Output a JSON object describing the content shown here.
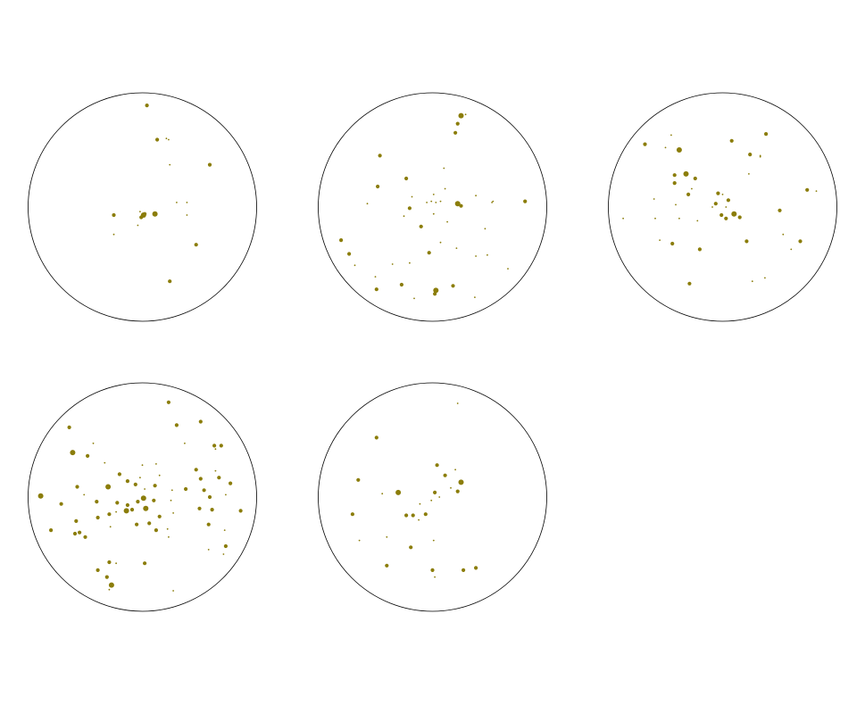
{
  "chart_data": [
    {
      "type": "scatter",
      "marker_color": "#8B7D0A",
      "points": [
        [
          0.04,
          0.89,
          2
        ],
        [
          0.13,
          0.59,
          2
        ],
        [
          0.23,
          0.59,
          1
        ],
        [
          0.24,
          0.37,
          1
        ],
        [
          0.39,
          0.04,
          1
        ],
        [
          0.3,
          0.04,
          1
        ],
        [
          0.01,
          -0.07,
          3
        ],
        [
          0.02,
          -0.06,
          2
        ],
        [
          -0.01,
          -0.09,
          2
        ],
        [
          -0.02,
          -0.04,
          1
        ],
        [
          0.11,
          -0.06,
          3
        ],
        [
          0.39,
          -0.07,
          1
        ],
        [
          -0.25,
          -0.24,
          1
        ],
        [
          -0.04,
          -0.16,
          1
        ],
        [
          0.47,
          -0.33,
          2
        ],
        [
          -0.25,
          -0.07,
          2
        ],
        [
          0.59,
          0.37,
          2
        ],
        [
          0.24,
          -0.65,
          2
        ],
        [
          0.21,
          0.6,
          1
        ]
      ]
    },
    {
      "type": "scatter",
      "marker_color": "#8B7D0A",
      "points": [
        [
          0.25,
          0.8,
          3
        ],
        [
          0.29,
          0.81,
          1
        ],
        [
          0.22,
          0.73,
          2
        ],
        [
          0.2,
          0.65,
          2
        ],
        [
          -0.46,
          0.45,
          2
        ],
        [
          0.1,
          0.34,
          1
        ],
        [
          -0.23,
          0.25,
          2
        ],
        [
          0.11,
          0.16,
          1
        ],
        [
          -0.48,
          0.18,
          2
        ],
        [
          0.38,
          0.1,
          1
        ],
        [
          -0.18,
          0.09,
          1
        ],
        [
          0.01,
          0.11,
          1
        ],
        [
          -0.57,
          0.03,
          1
        ],
        [
          -0.05,
          0.04,
          1
        ],
        [
          -0.01,
          0.05,
          1
        ],
        [
          0.03,
          0.04,
          1
        ],
        [
          0.07,
          0.05,
          1
        ],
        [
          0.22,
          0.03,
          3
        ],
        [
          0.25,
          0.01,
          2
        ],
        [
          0.52,
          0.04,
          1
        ],
        [
          0.81,
          0.05,
          2
        ],
        [
          -0.2,
          -0.01,
          2
        ],
        [
          0.01,
          -0.06,
          1
        ],
        [
          -0.25,
          -0.08,
          1
        ],
        [
          0.13,
          -0.13,
          1
        ],
        [
          -0.1,
          -0.17,
          2
        ],
        [
          0.46,
          -0.19,
          1
        ],
        [
          -0.8,
          -0.29,
          2
        ],
        [
          0.07,
          -0.31,
          1
        ],
        [
          0.21,
          -0.36,
          1
        ],
        [
          0.38,
          -0.43,
          1
        ],
        [
          0.48,
          -0.42,
          1
        ],
        [
          -0.73,
          -0.41,
          2
        ],
        [
          -0.03,
          -0.4,
          2
        ],
        [
          -0.68,
          -0.51,
          1
        ],
        [
          -0.35,
          -0.5,
          1
        ],
        [
          -0.2,
          -0.49,
          1
        ],
        [
          0.66,
          -0.54,
          1
        ],
        [
          -0.5,
          -0.61,
          1
        ],
        [
          -0.27,
          -0.68,
          2
        ],
        [
          0.18,
          -0.69,
          2
        ],
        [
          -0.49,
          -0.72,
          2
        ],
        [
          0.03,
          -0.73,
          3
        ],
        [
          0.02,
          -0.76,
          2
        ],
        [
          -0.16,
          -0.8,
          1
        ],
        [
          0.37,
          -0.79,
          1
        ],
        [
          0.53,
          0.05,
          1
        ]
      ]
    },
    {
      "type": "scatter",
      "marker_color": "#8B7D0A",
      "points": [
        [
          0.38,
          0.64,
          2
        ],
        [
          -0.68,
          0.55,
          2
        ],
        [
          -0.45,
          0.63,
          1
        ],
        [
          -0.38,
          0.5,
          3
        ],
        [
          0.08,
          0.58,
          2
        ],
        [
          0.24,
          0.46,
          2
        ],
        [
          0.33,
          0.44,
          1
        ],
        [
          -0.5,
          0.52,
          1
        ],
        [
          0.23,
          0.29,
          1
        ],
        [
          -0.32,
          0.29,
          3
        ],
        [
          -0.42,
          0.28,
          2
        ],
        [
          -0.24,
          0.25,
          2
        ],
        [
          -0.42,
          0.21,
          2
        ],
        [
          -0.27,
          0.16,
          1
        ],
        [
          -0.3,
          0.11,
          2
        ],
        [
          -0.04,
          0.12,
          2
        ],
        [
          0.0,
          0.11,
          1
        ],
        [
          -0.6,
          0.07,
          1
        ],
        [
          -0.06,
          0.03,
          2
        ],
        [
          0.05,
          0.06,
          2
        ],
        [
          -0.41,
          0.02,
          1
        ],
        [
          -0.09,
          0.0,
          1
        ],
        [
          0.03,
          0.0,
          1
        ],
        [
          0.1,
          -0.06,
          3
        ],
        [
          0.15,
          -0.09,
          2
        ],
        [
          -0.01,
          -0.07,
          2
        ],
        [
          0.03,
          -0.1,
          2
        ],
        [
          -0.59,
          -0.1,
          1
        ],
        [
          -0.55,
          -0.29,
          1
        ],
        [
          -0.38,
          -0.1,
          1
        ],
        [
          -0.22,
          -0.12,
          1
        ],
        [
          0.21,
          -0.3,
          2
        ],
        [
          -0.44,
          -0.32,
          2
        ],
        [
          -0.2,
          -0.37,
          2
        ],
        [
          0.5,
          -0.03,
          2
        ],
        [
          0.74,
          0.15,
          2
        ],
        [
          0.82,
          0.14,
          1
        ],
        [
          0.53,
          -0.24,
          1
        ],
        [
          0.68,
          -0.3,
          2
        ],
        [
          0.6,
          -0.37,
          1
        ],
        [
          -0.87,
          -0.1,
          1
        ],
        [
          -0.29,
          -0.67,
          2
        ],
        [
          0.26,
          -0.65,
          1
        ],
        [
          0.37,
          -0.62,
          1
        ],
        [
          0.33,
          0.45,
          1
        ],
        [
          0.24,
          0.47,
          1
        ]
      ]
    },
    {
      "type": "scatter",
      "marker_color": "#8B7D0A",
      "points": [
        [
          0.23,
          0.83,
          2
        ],
        [
          0.3,
          0.63,
          2
        ],
        [
          0.51,
          0.66,
          2
        ],
        [
          -0.64,
          0.61,
          2
        ],
        [
          -0.43,
          0.47,
          1
        ],
        [
          0.37,
          0.47,
          1
        ],
        [
          0.63,
          0.45,
          2
        ],
        [
          0.69,
          0.45,
          2
        ],
        [
          -0.61,
          0.39,
          3
        ],
        [
          -0.48,
          0.36,
          2
        ],
        [
          -0.33,
          0.3,
          1
        ],
        [
          0.0,
          0.28,
          1
        ],
        [
          0.12,
          0.29,
          1
        ],
        [
          0.47,
          0.24,
          2
        ],
        [
          0.64,
          0.23,
          1
        ],
        [
          -0.2,
          0.2,
          2
        ],
        [
          -0.13,
          0.14,
          2
        ],
        [
          -0.02,
          0.17,
          1
        ],
        [
          0.15,
          0.19,
          1
        ],
        [
          0.51,
          0.16,
          2
        ],
        [
          -0.06,
          0.11,
          2
        ],
        [
          0.11,
          0.1,
          2
        ],
        [
          0.67,
          0.17,
          2
        ],
        [
          0.77,
          0.12,
          2
        ],
        [
          -0.57,
          0.09,
          2
        ],
        [
          -0.3,
          0.09,
          3
        ],
        [
          0.38,
          0.07,
          2
        ],
        [
          0.54,
          0.06,
          2
        ],
        [
          -0.51,
          0.02,
          1
        ],
        [
          0.02,
          0.07,
          1
        ],
        [
          0.26,
          0.06,
          1
        ],
        [
          0.73,
          0.02,
          1
        ],
        [
          -0.89,
          0.01,
          3
        ],
        [
          -0.71,
          -0.06,
          2
        ],
        [
          -0.4,
          -0.04,
          2
        ],
        [
          -0.22,
          -0.05,
          2
        ],
        [
          -0.13,
          -0.07,
          2
        ],
        [
          -0.04,
          -0.04,
          2
        ],
        [
          0.01,
          -0.01,
          3
        ],
        [
          0.1,
          -0.03,
          2
        ],
        [
          0.25,
          -0.03,
          1
        ],
        [
          0.5,
          -0.1,
          2
        ],
        [
          0.61,
          -0.11,
          2
        ],
        [
          0.86,
          -0.12,
          2
        ],
        [
          0.27,
          -0.14,
          1
        ],
        [
          -0.39,
          -0.18,
          2
        ],
        [
          -0.29,
          -0.15,
          2
        ],
        [
          -0.23,
          -0.13,
          1
        ],
        [
          -0.14,
          -0.12,
          3
        ],
        [
          -0.09,
          -0.11,
          2
        ],
        [
          0.03,
          -0.1,
          3
        ],
        [
          0.15,
          -0.17,
          2
        ],
        [
          -0.58,
          -0.21,
          2
        ],
        [
          -0.28,
          -0.26,
          1
        ],
        [
          -0.05,
          -0.24,
          2
        ],
        [
          0.06,
          -0.23,
          2
        ],
        [
          0.12,
          -0.29,
          2
        ],
        [
          -0.8,
          -0.29,
          2
        ],
        [
          -0.55,
          -0.31,
          2
        ],
        [
          0.22,
          -0.28,
          1
        ],
        [
          0.58,
          -0.24,
          2
        ],
        [
          -0.5,
          -0.35,
          2
        ],
        [
          0.23,
          -0.35,
          1
        ],
        [
          0.73,
          -0.43,
          2
        ],
        [
          0.58,
          -0.46,
          1
        ],
        [
          0.71,
          -0.5,
          1
        ],
        [
          -0.29,
          -0.57,
          2
        ],
        [
          -0.23,
          -0.58,
          1
        ],
        [
          0.02,
          -0.58,
          2
        ],
        [
          -0.39,
          -0.64,
          2
        ],
        [
          -0.31,
          -0.7,
          2
        ],
        [
          -0.27,
          -0.77,
          3
        ],
        [
          -0.29,
          -0.81,
          1
        ],
        [
          0.27,
          -0.82,
          1
        ],
        [
          0.59,
          0.0,
          2
        ],
        [
          -0.59,
          -0.32,
          2
        ],
        [
          0.64,
          0.42,
          1
        ],
        [
          0.72,
          -0.29,
          1
        ]
      ]
    },
    {
      "type": "scatter",
      "marker_color": "#8B7D0A",
      "points": [
        [
          0.22,
          0.82,
          1
        ],
        [
          -0.49,
          0.52,
          2
        ],
        [
          0.04,
          0.28,
          2
        ],
        [
          0.2,
          0.24,
          1
        ],
        [
          0.11,
          0.19,
          2
        ],
        [
          -0.65,
          0.15,
          2
        ],
        [
          0.25,
          0.13,
          3
        ],
        [
          0.16,
          0.08,
          1
        ],
        [
          0.22,
          0.05,
          2
        ],
        [
          -0.3,
          0.04,
          3
        ],
        [
          -0.44,
          0.03,
          1
        ],
        [
          0.02,
          0.04,
          2
        ],
        [
          0.06,
          0.0,
          1
        ],
        [
          -0.01,
          -0.03,
          1
        ],
        [
          -0.11,
          -0.06,
          1
        ],
        [
          -0.17,
          -0.16,
          2
        ],
        [
          -0.23,
          -0.16,
          2
        ],
        [
          -0.06,
          -0.15,
          2
        ],
        [
          -0.7,
          -0.15,
          2
        ],
        [
          -0.12,
          -0.2,
          1
        ],
        [
          -0.4,
          -0.35,
          1
        ],
        [
          0.01,
          -0.38,
          1
        ],
        [
          -0.19,
          -0.44,
          2
        ],
        [
          -0.64,
          -0.38,
          1
        ],
        [
          -0.4,
          -0.6,
          2
        ],
        [
          0.27,
          -0.64,
          2
        ],
        [
          0.38,
          -0.62,
          2
        ],
        [
          0.0,
          -0.64,
          2
        ],
        [
          0.02,
          -0.7,
          1
        ]
      ]
    }
  ]
}
